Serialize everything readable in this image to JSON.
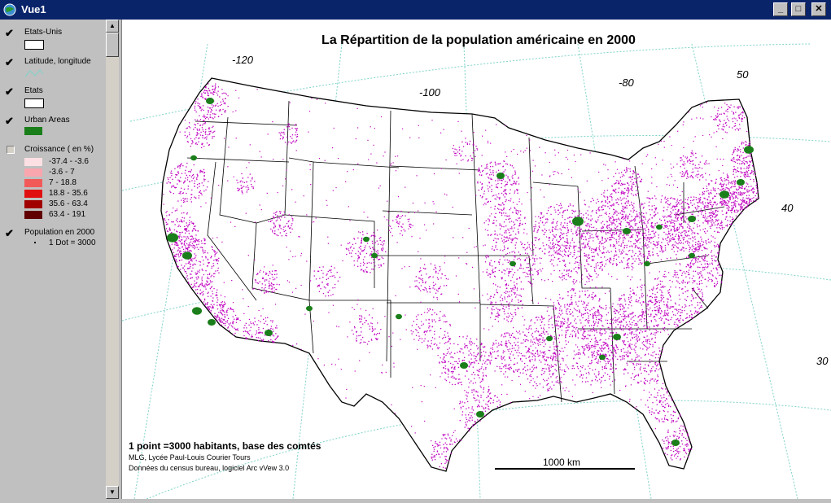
{
  "window": {
    "title": "Vue1",
    "minimize": "_",
    "maximize": "□",
    "close": "✕"
  },
  "toc": {
    "layers": [
      {
        "name": "Etats-Unis",
        "checked": true,
        "symbol": "polygon",
        "color": "#ffffff"
      },
      {
        "name": "Latitude, longitude",
        "checked": true,
        "symbol": "line",
        "color": "#7fd3c8"
      },
      {
        "name": "Etats",
        "checked": true,
        "symbol": "polygon",
        "color": "#ffffff"
      },
      {
        "name": "Urban Areas",
        "checked": true,
        "symbol": "polygon",
        "color": "#1a7f1a"
      },
      {
        "name": "Croissance ( en %)",
        "checked": false,
        "classes": [
          {
            "label": "-37.4 - -3.6",
            "color": "#fde0e4"
          },
          {
            "label": "-3.6 - 7",
            "color": "#f9a6ae"
          },
          {
            "label": "7 - 18.8",
            "color": "#f25a5a"
          },
          {
            "label": "18.8 - 35.6",
            "color": "#e01010"
          },
          {
            "label": "35.6 - 63.4",
            "color": "#a00000"
          },
          {
            "label": "63.4 - 191",
            "color": "#600000"
          }
        ]
      },
      {
        "name": "Population en 2000",
        "checked": true,
        "dot_label": "1 Dot = 3000",
        "color": "#c000c0"
      }
    ]
  },
  "map": {
    "title": "La Répartition de la population américaine en 2000",
    "graticule_labels": [
      "-120",
      "-100",
      "-80",
      "50",
      "40",
      "30"
    ],
    "note_bold": "1 point =3000 habitants, base des comtés",
    "note_line1": "MLG, Lycée Paul-Louis Courier Tours",
    "note_line2": "Données du census bureau, logiciel Arc vVew 3.0",
    "scale_label": "1000 km",
    "colors": {
      "dots": "#c000c0",
      "urban": "#1a7f1a",
      "graticule": "#7fd3c8",
      "states": "#000000"
    }
  }
}
